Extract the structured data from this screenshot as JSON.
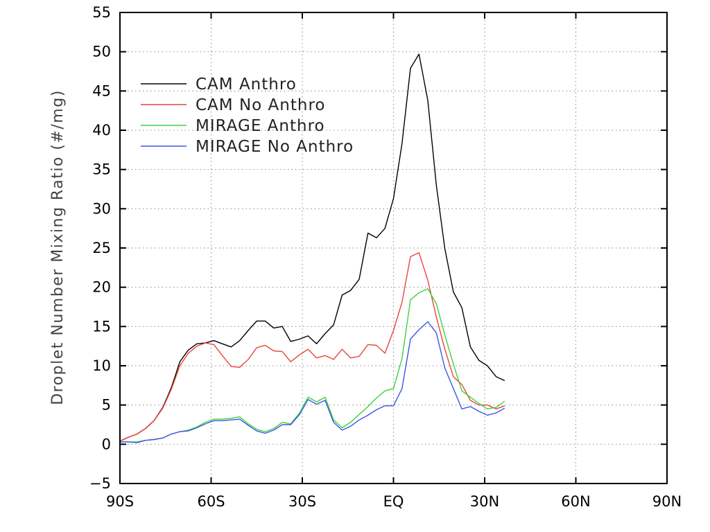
{
  "chart_data": {
    "type": "line",
    "ylabel": "Droplet Number Mixing Ratio (#/mg)",
    "xlabel": "",
    "xlim": [
      -90,
      90
    ],
    "ylim": [
      -5,
      55
    ],
    "xticks": [
      {
        "value": -90,
        "label": "90S"
      },
      {
        "value": -60,
        "label": "60S"
      },
      {
        "value": -30,
        "label": "30S"
      },
      {
        "value": 0,
        "label": "EQ"
      },
      {
        "value": 30,
        "label": "30N"
      },
      {
        "value": 60,
        "label": "60N"
      },
      {
        "value": 90,
        "label": "90N"
      }
    ],
    "yticks": [
      {
        "value": -5,
        "label": "−5"
      },
      {
        "value": 0,
        "label": "0"
      },
      {
        "value": 5,
        "label": "5"
      },
      {
        "value": 10,
        "label": "10"
      },
      {
        "value": 15,
        "label": "15"
      },
      {
        "value": 20,
        "label": "20"
      },
      {
        "value": 25,
        "label": "25"
      },
      {
        "value": 30,
        "label": "30"
      },
      {
        "value": 35,
        "label": "35"
      },
      {
        "value": 40,
        "label": "40"
      },
      {
        "value": 45,
        "label": "45"
      },
      {
        "value": 50,
        "label": "50"
      },
      {
        "value": 55,
        "label": "55"
      }
    ],
    "grid": true,
    "legend_position": "top-left",
    "series": [
      {
        "name": "CAM Anthro",
        "color": "#000000",
        "points": [
          [
            -90,
            0.4
          ],
          [
            -87.2,
            0.9
          ],
          [
            -84.4,
            1.3
          ],
          [
            -81.6,
            2.0
          ],
          [
            -78.8,
            3.0
          ],
          [
            -75.9,
            4.7
          ],
          [
            -73.1,
            7.2
          ],
          [
            -70.3,
            10.5
          ],
          [
            -67.5,
            12.0
          ],
          [
            -64.7,
            12.8
          ],
          [
            -61.9,
            12.9
          ],
          [
            -59.1,
            13.2
          ],
          [
            -56.3,
            12.8
          ],
          [
            -53.4,
            12.4
          ],
          [
            -50.6,
            13.2
          ],
          [
            -47.8,
            14.5
          ],
          [
            -45,
            15.7
          ],
          [
            -42.2,
            15.7
          ],
          [
            -39.4,
            14.8
          ],
          [
            -36.6,
            15.0
          ],
          [
            -33.8,
            13.1
          ],
          [
            -30.9,
            13.4
          ],
          [
            -28.1,
            13.8
          ],
          [
            -25.3,
            12.8
          ],
          [
            -22.5,
            14.1
          ],
          [
            -19.7,
            15.2
          ],
          [
            -16.9,
            19.0
          ],
          [
            -14.1,
            19.6
          ],
          [
            -11.3,
            21.0
          ],
          [
            -8.4,
            26.9
          ],
          [
            -5.6,
            26.3
          ],
          [
            -2.8,
            27.5
          ],
          [
            0,
            31.3
          ],
          [
            2.8,
            38.3
          ],
          [
            5.6,
            47.9
          ],
          [
            8.4,
            49.7
          ],
          [
            11.3,
            43.8
          ],
          [
            14.1,
            33.0
          ],
          [
            16.9,
            24.9
          ],
          [
            19.7,
            19.4
          ],
          [
            22.5,
            17.4
          ],
          [
            25.3,
            12.4
          ],
          [
            28.1,
            10.7
          ],
          [
            30.9,
            10.0
          ],
          [
            33.8,
            8.6
          ],
          [
            36.6,
            8.1
          ]
        ]
      },
      {
        "name": "CAM No Anthro",
        "color": "#e8453c",
        "points": [
          [
            -90,
            0.4
          ],
          [
            -87.2,
            0.9
          ],
          [
            -84.4,
            1.3
          ],
          [
            -81.6,
            2.0
          ],
          [
            -78.8,
            3.0
          ],
          [
            -75.9,
            4.6
          ],
          [
            -73.1,
            7.0
          ],
          [
            -70.3,
            10.0
          ],
          [
            -67.5,
            11.6
          ],
          [
            -64.7,
            12.5
          ],
          [
            -61.9,
            12.9
          ],
          [
            -59.1,
            12.7
          ],
          [
            -56.3,
            11.3
          ],
          [
            -53.4,
            9.9
          ],
          [
            -50.6,
            9.8
          ],
          [
            -47.8,
            10.8
          ],
          [
            -45,
            12.3
          ],
          [
            -42.2,
            12.6
          ],
          [
            -39.4,
            11.9
          ],
          [
            -36.6,
            11.8
          ],
          [
            -33.8,
            10.5
          ],
          [
            -30.9,
            11.4
          ],
          [
            -28.1,
            12.1
          ],
          [
            -25.3,
            11.0
          ],
          [
            -22.5,
            11.3
          ],
          [
            -19.7,
            10.8
          ],
          [
            -16.9,
            12.1
          ],
          [
            -14.1,
            11.0
          ],
          [
            -11.3,
            11.2
          ],
          [
            -8.4,
            12.7
          ],
          [
            -5.6,
            12.6
          ],
          [
            -2.8,
            11.6
          ],
          [
            0,
            14.5
          ],
          [
            2.8,
            18.1
          ],
          [
            5.6,
            23.9
          ],
          [
            8.4,
            24.4
          ],
          [
            11.3,
            20.9
          ],
          [
            14.1,
            16.2
          ],
          [
            16.9,
            12.1
          ],
          [
            19.7,
            8.6
          ],
          [
            22.5,
            7.6
          ],
          [
            25.3,
            5.6
          ],
          [
            28.1,
            5.0
          ],
          [
            30.9,
            5.0
          ],
          [
            33.8,
            4.5
          ],
          [
            36.6,
            4.9
          ]
        ]
      },
      {
        "name": "MIRAGE Anthro",
        "color": "#3dd13d",
        "points": [
          [
            -90,
            0.3
          ],
          [
            -87.2,
            0.3
          ],
          [
            -84.4,
            0.3
          ],
          [
            -81.6,
            0.5
          ],
          [
            -78.8,
            0.6
          ],
          [
            -75.9,
            0.8
          ],
          [
            -73.1,
            1.3
          ],
          [
            -70.3,
            1.6
          ],
          [
            -67.5,
            1.8
          ],
          [
            -64.7,
            2.2
          ],
          [
            -61.9,
            2.8
          ],
          [
            -59.1,
            3.2
          ],
          [
            -56.3,
            3.2
          ],
          [
            -53.4,
            3.3
          ],
          [
            -50.6,
            3.5
          ],
          [
            -47.8,
            2.6
          ],
          [
            -45,
            1.9
          ],
          [
            -42.2,
            1.6
          ],
          [
            -39.4,
            2.0
          ],
          [
            -36.6,
            2.8
          ],
          [
            -33.8,
            2.6
          ],
          [
            -30.9,
            4.0
          ],
          [
            -28.1,
            6.0
          ],
          [
            -25.3,
            5.4
          ],
          [
            -22.5,
            6.0
          ],
          [
            -19.7,
            3.1
          ],
          [
            -16.9,
            2.1
          ],
          [
            -14.1,
            2.8
          ],
          [
            -11.3,
            3.8
          ],
          [
            -8.4,
            4.8
          ],
          [
            -5.6,
            5.9
          ],
          [
            -2.8,
            6.8
          ],
          [
            0,
            7.1
          ],
          [
            2.8,
            10.9
          ],
          [
            5.6,
            18.4
          ],
          [
            8.4,
            19.3
          ],
          [
            11.3,
            19.8
          ],
          [
            14.1,
            17.9
          ],
          [
            16.9,
            13.9
          ],
          [
            19.7,
            10.2
          ],
          [
            22.5,
            6.8
          ],
          [
            25.3,
            6.0
          ],
          [
            28.1,
            5.2
          ],
          [
            30.9,
            4.5
          ],
          [
            33.8,
            4.7
          ],
          [
            36.6,
            5.5
          ]
        ]
      },
      {
        "name": "MIRAGE No Anthro",
        "color": "#3a55e6",
        "points": [
          [
            -90,
            0.3
          ],
          [
            -87.2,
            0.3
          ],
          [
            -84.4,
            0.2
          ],
          [
            -81.6,
            0.5
          ],
          [
            -78.8,
            0.6
          ],
          [
            -75.9,
            0.8
          ],
          [
            -73.1,
            1.3
          ],
          [
            -70.3,
            1.6
          ],
          [
            -67.5,
            1.7
          ],
          [
            -64.7,
            2.1
          ],
          [
            -61.9,
            2.6
          ],
          [
            -59.1,
            3.0
          ],
          [
            -56.3,
            3.0
          ],
          [
            -53.4,
            3.1
          ],
          [
            -50.6,
            3.2
          ],
          [
            -47.8,
            2.4
          ],
          [
            -45,
            1.7
          ],
          [
            -42.2,
            1.4
          ],
          [
            -39.4,
            1.8
          ],
          [
            -36.6,
            2.5
          ],
          [
            -33.8,
            2.5
          ],
          [
            -30.9,
            3.8
          ],
          [
            -28.1,
            5.7
          ],
          [
            -25.3,
            5.1
          ],
          [
            -22.5,
            5.6
          ],
          [
            -19.7,
            2.8
          ],
          [
            -16.9,
            1.8
          ],
          [
            -14.1,
            2.3
          ],
          [
            -11.3,
            3.1
          ],
          [
            -8.4,
            3.7
          ],
          [
            -5.6,
            4.4
          ],
          [
            -2.8,
            4.9
          ],
          [
            0,
            4.9
          ],
          [
            2.8,
            7.1
          ],
          [
            5.6,
            13.4
          ],
          [
            8.4,
            14.6
          ],
          [
            11.3,
            15.6
          ],
          [
            14.1,
            14.2
          ],
          [
            16.9,
            9.7
          ],
          [
            19.7,
            7.1
          ],
          [
            22.5,
            4.5
          ],
          [
            25.3,
            4.8
          ],
          [
            28.1,
            4.2
          ],
          [
            30.9,
            3.7
          ],
          [
            33.8,
            4.0
          ],
          [
            36.6,
            4.6
          ]
        ]
      }
    ]
  }
}
